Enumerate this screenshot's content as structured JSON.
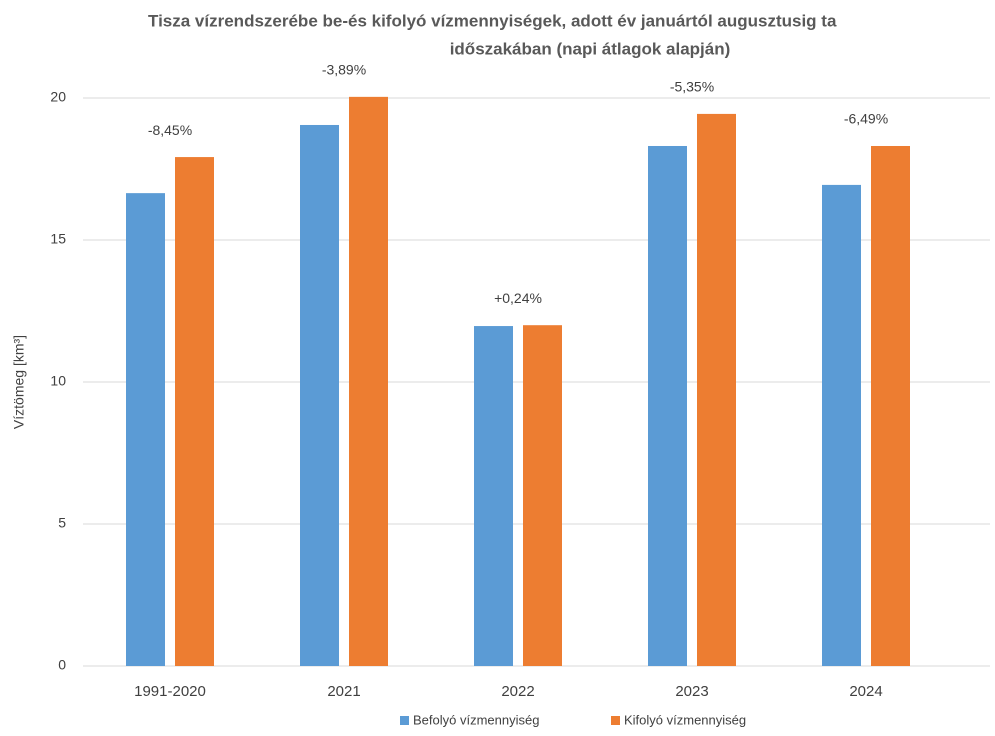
{
  "chart_data": {
    "type": "bar",
    "title": [
      "Tisza vízrendszerébe be-és kifolyó vízmennyiségek, adott év januártól augusztusig ta",
      "időszakában (napi átlagok alapján)"
    ],
    "y_label": "Víztömeg [km³]",
    "categories": [
      "1991-2020",
      "2021",
      "2022",
      "2023",
      "2024"
    ],
    "series": [
      {
        "name": "Befolyó vízmennyiség",
        "color": "#5b9bd5",
        "values": [
          16.65,
          19.05,
          11.97,
          18.31,
          16.94
        ]
      },
      {
        "name": "Kifolyó vízmennyiség",
        "color": "#ed7d31",
        "values": [
          17.92,
          20.04,
          12.0,
          19.44,
          18.31
        ]
      }
    ],
    "annotations": [
      "-8,45%",
      "-3,89%",
      "+0,24%",
      "-5,35%",
      "-6,49%"
    ],
    "ylim": [
      0,
      20
    ],
    "yticks": [
      0,
      5,
      10,
      15,
      20
    ],
    "grid": true,
    "legend": "bottom"
  }
}
